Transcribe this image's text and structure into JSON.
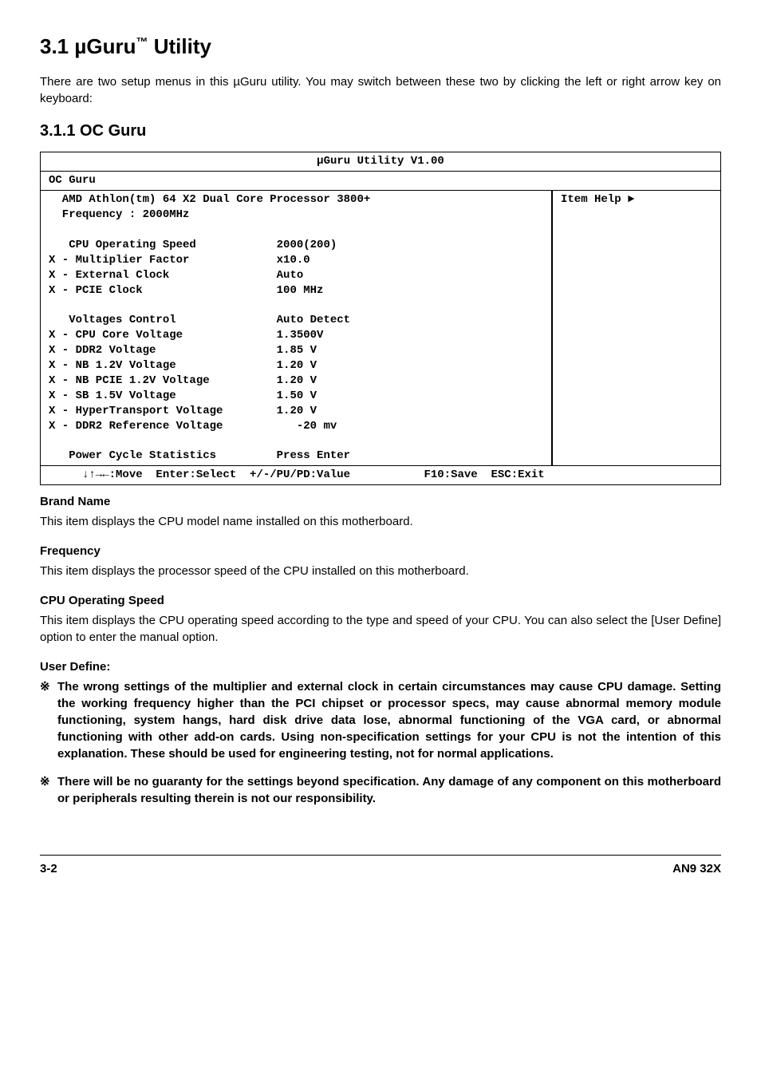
{
  "heading": {
    "number": "3.1",
    "title_prefix": "µGuru",
    "sup": "™",
    "title_suffix": "Utility"
  },
  "intro": "There are two setup menus in this µGuru utility. You may switch between these two by clicking the left or right arrow key on keyboard:",
  "subheading": "3.1.1 OC Guru",
  "bios": {
    "title": "µGuru Utility V1.00",
    "tab": "OC Guru",
    "header_lines": "  AMD Athlon(tm) 64 X2 Dual Core Processor 3800+\n  Frequency : 2000MHz",
    "help_label": "Item Help ►",
    "rows": [
      [
        "",
        "",
        ""
      ],
      [
        "  ",
        "CPU Operating Speed",
        "2000(200)"
      ],
      [
        "X -",
        "Multiplier Factor",
        "x10.0"
      ],
      [
        "X -",
        "External Clock",
        "Auto"
      ],
      [
        "X -",
        "PCIE Clock",
        "100 MHz"
      ],
      [
        "",
        "",
        ""
      ],
      [
        "  ",
        "Voltages Control",
        "Auto Detect"
      ],
      [
        "X -",
        "CPU Core Voltage",
        "1.3500V"
      ],
      [
        "X -",
        "DDR2 Voltage",
        "1.85 V"
      ],
      [
        "X -",
        "NB 1.2V Voltage",
        "1.20 V"
      ],
      [
        "X -",
        "NB PCIE 1.2V Voltage",
        "1.20 V"
      ],
      [
        "X -",
        "SB 1.5V Voltage",
        "1.50 V"
      ],
      [
        "X -",
        "HyperTransport Voltage",
        "1.20 V"
      ],
      [
        "X -",
        "DDR2 Reference Voltage",
        "   -20 mv"
      ],
      [
        "",
        "",
        ""
      ],
      [
        "  ",
        "Power Cycle Statistics",
        "Press Enter"
      ]
    ],
    "label_col_width": 30,
    "footer": "     ↓↑→←:Move  Enter:Select  +/-/PU/PD:Value           F10:Save  ESC:Exit"
  },
  "sections": [
    {
      "title": "Brand Name",
      "body": "This item displays the CPU model name installed on this motherboard."
    },
    {
      "title": "Frequency",
      "body": "This item displays the processor speed of the CPU installed on this motherboard."
    },
    {
      "title": "CPU Operating Speed",
      "body": "This item displays the CPU operating speed according to the type and speed of your CPU. You can also select the [User Define] option to enter the manual option."
    }
  ],
  "user_define_label": "User Define:",
  "notes_marker": "※",
  "notes": [
    "The wrong settings of the multiplier and external clock in certain circumstances may cause CPU damage. Setting the working frequency higher than the PCI chipset or processor specs, may cause abnormal memory module functioning, system hangs, hard disk drive data lose, abnormal functioning of the VGA card, or abnormal functioning with other add-on cards. Using non-specification settings for your CPU is not the intention of this explanation. These should be used for engineering testing, not for normal applications.",
    "There will be no guaranty for the settings beyond specification. Any damage of any component on this motherboard or peripherals resulting therein is not our responsibility."
  ],
  "footer": {
    "left": "3-2",
    "right": "AN9 32X"
  }
}
